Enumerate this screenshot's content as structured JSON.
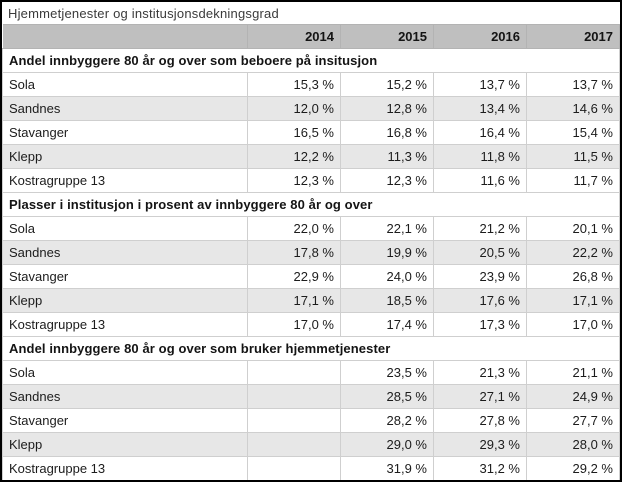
{
  "chart_data": {
    "type": "table",
    "title": "Hjemmetjenester og institusjonsdekningsgrad",
    "columns": [
      "2014",
      "2015",
      "2016",
      "2017"
    ],
    "colors": {
      "year_header_bg": "#bfbfbf",
      "row_alt_bg": "#e7e7e7",
      "border": "#cfcfcf",
      "outer_border": "#000000",
      "text": "#1c1c1c"
    },
    "sections": [
      {
        "header": "Andel innbyggere 80 år og over som beboere på insitusjon",
        "rows": [
          {
            "label": "Sola",
            "values": [
              "15,3 %",
              "15,2 %",
              "13,7 %",
              "13,7 %"
            ]
          },
          {
            "label": "Sandnes",
            "values": [
              "12,0 %",
              "12,8 %",
              "13,4 %",
              "14,6 %"
            ]
          },
          {
            "label": "Stavanger",
            "values": [
              "16,5 %",
              "16,8 %",
              "16,4 %",
              "15,4 %"
            ]
          },
          {
            "label": "Klepp",
            "values": [
              "12,2 %",
              "11,3 %",
              "11,8 %",
              "11,5 %"
            ]
          },
          {
            "label": "Kostragruppe 13",
            "values": [
              "12,3 %",
              "12,3 %",
              "11,6 %",
              "11,7 %"
            ]
          }
        ]
      },
      {
        "header": "Plasser i institusjon i prosent av innbyggere 80 år og over",
        "rows": [
          {
            "label": "Sola",
            "values": [
              "22,0 %",
              "22,1 %",
              "21,2 %",
              "20,1 %"
            ]
          },
          {
            "label": "Sandnes",
            "values": [
              "17,8 %",
              "19,9 %",
              "20,5 %",
              "22,2 %"
            ]
          },
          {
            "label": "Stavanger",
            "values": [
              "22,9 %",
              "24,0 %",
              "23,9 %",
              "26,8 %"
            ]
          },
          {
            "label": "Klepp",
            "values": [
              "17,1 %",
              "18,5 %",
              "17,6 %",
              "17,1 %"
            ]
          },
          {
            "label": "Kostragruppe 13",
            "values": [
              "17,0 %",
              "17,4 %",
              "17,3 %",
              "17,0 %"
            ]
          }
        ]
      },
      {
        "header": "Andel innbyggere 80 år og over som bruker hjemmetjenester",
        "rows": [
          {
            "label": "Sola",
            "values": [
              "",
              "23,5 %",
              "21,3 %",
              "21,1 %"
            ]
          },
          {
            "label": "Sandnes",
            "values": [
              "",
              "28,5 %",
              "27,1 %",
              "24,9 %"
            ]
          },
          {
            "label": "Stavanger",
            "values": [
              "",
              "28,2 %",
              "27,8 %",
              "27,7 %"
            ]
          },
          {
            "label": "Klepp",
            "values": [
              "",
              "29,0 %",
              "29,3 %",
              "28,0 %"
            ]
          },
          {
            "label": "Kostragruppe 13",
            "values": [
              "",
              "31,9 %",
              "31,2 %",
              "29,2 %"
            ]
          }
        ]
      }
    ]
  }
}
